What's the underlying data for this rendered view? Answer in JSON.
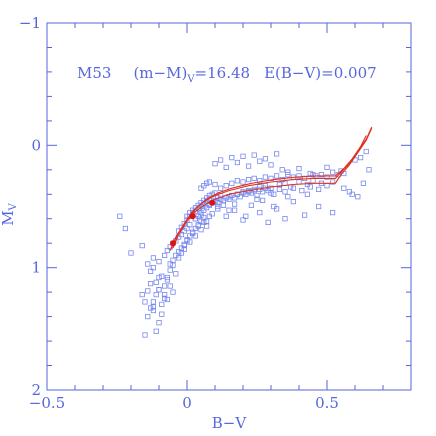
{
  "chart_data": {
    "type": "scatter",
    "title": "",
    "xlabel": "B−V",
    "ylabel": "M",
    "ylabel_subscript": "V",
    "xlim": [
      -0.5,
      0.8
    ],
    "ylim": [
      -1,
      2
    ],
    "y_inverted": true,
    "grid": false,
    "x_ticks": [
      -0.5,
      0,
      0.5
    ],
    "x_tick_labels": [
      "−0.5",
      "0",
      "0.5"
    ],
    "y_ticks": [
      -1,
      0,
      1,
      2
    ],
    "y_tick_labels": [
      "−1",
      "0",
      "1",
      "2"
    ],
    "annotation": {
      "cluster": "M53",
      "modulus_prefix": "(m−M)",
      "modulus_subscript": "V",
      "modulus_value": "=16.48",
      "reddening": "E(B−V)=0.007"
    },
    "colors": {
      "axis": "#5566dd",
      "points": "#7788ee",
      "tracks": "#dd3322",
      "markers": "#dd1111"
    },
    "tracks": [
      {
        "x": [
          -0.06,
          -0.04,
          -0.01,
          0.02,
          0.06,
          0.1,
          0.15,
          0.22,
          0.3,
          0.38,
          0.45,
          0.5,
          0.53,
          0.55,
          0.58,
          0.61,
          0.64,
          0.66
        ],
        "y": [
          0.86,
          0.75,
          0.64,
          0.54,
          0.46,
          0.41,
          0.37,
          0.33,
          0.3,
          0.28,
          0.27,
          0.27,
          0.27,
          0.22,
          0.15,
          0.05,
          -0.05,
          -0.15
        ]
      },
      {
        "x": [
          -0.06,
          -0.04,
          -0.01,
          0.02,
          0.06,
          0.1,
          0.15,
          0.22,
          0.3,
          0.38,
          0.45,
          0.5,
          0.53,
          0.55,
          0.58,
          0.61,
          0.64,
          0.66
        ],
        "y": [
          0.86,
          0.76,
          0.65,
          0.56,
          0.49,
          0.44,
          0.4,
          0.37,
          0.34,
          0.32,
          0.31,
          0.31,
          0.31,
          0.24,
          0.16,
          0.06,
          -0.04,
          -0.14
        ]
      },
      {
        "x": [
          -0.05,
          -0.03,
          0.0,
          0.03,
          0.07,
          0.11,
          0.16,
          0.23,
          0.31,
          0.39,
          0.46,
          0.51,
          0.53,
          0.56,
          0.59,
          0.62,
          0.64
        ],
        "y": [
          0.84,
          0.73,
          0.62,
          0.52,
          0.44,
          0.39,
          0.35,
          0.31,
          0.28,
          0.26,
          0.25,
          0.25,
          0.25,
          0.19,
          0.11,
          0.01,
          -0.08
        ]
      }
    ],
    "markers": {
      "x": [
        -0.05,
        0.02,
        0.09
      ],
      "y": [
        0.8,
        0.58,
        0.47
      ]
    },
    "points": {
      "x": [
        -0.24,
        -0.22,
        -0.2,
        -0.16,
        -0.14,
        -0.12,
        -0.13,
        -0.11,
        -0.1,
        -0.09,
        -0.08,
        -0.12,
        -0.1,
        -0.08,
        -0.07,
        -0.06,
        -0.05,
        -0.04,
        -0.03,
        -0.02,
        -0.01,
        0.0,
        -0.06,
        -0.05,
        -0.04,
        -0.03,
        -0.02,
        -0.01,
        0.0,
        0.01,
        0.02,
        0.03,
        0.04,
        0.05,
        0.06,
        -0.03,
        -0.02,
        -0.01,
        0.0,
        0.01,
        0.02,
        0.03,
        0.04,
        0.05,
        0.06,
        0.07,
        0.08,
        0.0,
        0.01,
        0.02,
        0.03,
        0.04,
        0.05,
        0.06,
        0.07,
        0.08,
        0.09,
        0.1,
        0.03,
        0.04,
        0.05,
        0.06,
        0.07,
        0.08,
        0.09,
        0.1,
        0.11,
        0.12,
        0.05,
        0.06,
        0.07,
        0.08,
        0.1,
        0.12,
        0.14,
        0.16,
        0.18,
        0.2,
        0.22,
        0.24,
        0.26,
        0.28,
        0.3,
        0.32,
        0.34,
        0.36,
        0.38,
        0.4,
        0.42,
        0.44,
        0.46,
        0.48,
        0.5,
        0.52,
        0.54,
        0.56,
        0.15,
        0.18,
        0.2,
        0.22,
        0.24,
        0.25,
        0.26,
        0.28,
        0.3,
        0.33,
        0.35,
        0.37,
        0.4,
        0.43,
        0.45,
        0.48,
        0.5,
        0.52,
        0.11,
        0.13,
        0.15,
        0.17,
        0.19,
        0.21,
        0.23,
        0.25,
        0.27,
        0.29,
        0.31,
        0.33,
        0.35,
        0.38,
        0.41,
        0.44,
        0.47,
        0.05,
        0.08,
        0.1,
        0.12,
        0.14,
        0.16,
        0.18,
        0.2,
        0.22,
        0.24,
        0.26,
        0.28,
        0.3,
        0.1,
        0.12,
        0.14,
        0.16,
        0.18,
        0.2,
        0.22,
        0.24,
        0.26,
        0.28,
        0.3,
        0.32,
        0.34,
        0.36,
        0.4,
        0.45,
        0.5,
        0.55,
        0.6,
        0.62,
        0.64,
        0.58,
        0.61,
        0.56,
        0.59,
        0.63,
        0.65,
        0.52,
        0.47,
        0.42,
        0.38,
        0.35,
        0.32,
        0.29,
        0.26,
        0.23,
        0.2,
        0.17,
        0.14,
        0.11,
        -0.07,
        -0.06,
        -0.05,
        -0.04,
        -0.08,
        -0.09,
        -0.1,
        -0.11,
        -0.12,
        -0.06,
        -0.05,
        -0.07,
        -0.03,
        -0.02,
        -0.01,
        -0.13,
        -0.15,
        -0.14,
        -0.12,
        -0.16,
        -0.1,
        -0.09,
        -0.08,
        -0.07,
        -0.11,
        -0.1,
        -0.12,
        -0.14,
        -0.13,
        -0.15,
        0.15,
        0.17,
        0.21,
        0.27,
        0.31,
        0.36,
        0.43,
        0.07,
        0.09,
        0.11,
        0.13,
        0.01,
        0.03,
        0.05,
        0.02,
        0.04,
        0.06,
        0.08,
        0.0,
        -0.01,
        0.01,
        0.03,
        0.05,
        0.07
      ],
      "y": [
        0.58,
        0.68,
        0.88,
        0.82,
        0.97,
        0.92,
        1.03,
        1.12,
        1.18,
        1.07,
        1.22,
        1.28,
        0.95,
        0.9,
        0.86,
        0.83,
        0.8,
        0.78,
        0.75,
        0.73,
        0.7,
        0.68,
        0.97,
        0.94,
        0.9,
        0.87,
        0.84,
        0.81,
        0.78,
        0.74,
        0.71,
        0.68,
        0.65,
        0.62,
        0.59,
        0.7,
        0.67,
        0.64,
        0.61,
        0.58,
        0.56,
        0.54,
        0.52,
        0.5,
        0.48,
        0.46,
        0.44,
        0.58,
        0.55,
        0.53,
        0.51,
        0.49,
        0.47,
        0.45,
        0.43,
        0.41,
        0.4,
        0.39,
        0.6,
        0.58,
        0.55,
        0.53,
        0.51,
        0.49,
        0.47,
        0.45,
        0.43,
        0.41,
        0.35,
        0.33,
        0.31,
        0.3,
        0.32,
        0.35,
        0.33,
        0.31,
        0.29,
        0.3,
        0.28,
        0.27,
        0.29,
        0.26,
        0.27,
        0.25,
        0.28,
        0.24,
        0.26,
        0.25,
        0.27,
        0.23,
        0.25,
        0.24,
        0.26,
        0.22,
        0.24,
        0.23,
        0.42,
        0.4,
        0.38,
        0.37,
        0.36,
        0.41,
        0.34,
        0.33,
        0.35,
        0.32,
        0.31,
        0.34,
        0.3,
        0.32,
        0.29,
        0.31,
        0.33,
        0.3,
        0.47,
        0.45,
        0.44,
        0.43,
        0.42,
        0.4,
        0.39,
        0.44,
        0.38,
        0.37,
        0.4,
        0.36,
        0.38,
        0.35,
        0.37,
        0.34,
        0.36,
        0.5,
        0.48,
        0.46,
        0.44,
        0.43,
        0.41,
        0.4,
        0.39,
        0.38,
        0.37,
        0.36,
        0.35,
        0.39,
        0.15,
        0.12,
        0.18,
        0.1,
        0.14,
        0.09,
        0.17,
        0.08,
        0.13,
        0.11,
        0.16,
        0.07,
        0.2,
        0.22,
        0.19,
        0.24,
        0.18,
        0.21,
        0.12,
        0.1,
        0.05,
        0.38,
        0.42,
        0.35,
        0.4,
        0.31,
        0.2,
        0.55,
        0.5,
        0.57,
        0.46,
        0.6,
        0.52,
        0.63,
        0.55,
        0.49,
        0.61,
        0.53,
        0.58,
        0.5,
        1.1,
        1.15,
        1.2,
        1.05,
        1.25,
        1.3,
        1.18,
        1.22,
        1.35,
        1.02,
        0.98,
        1.08,
        0.92,
        0.88,
        0.85,
        1.13,
        1.28,
        1.4,
        1.32,
        1.22,
        1.45,
        1.38,
        1.15,
        1.26,
        1.52,
        1.08,
        1.0,
        1.19,
        1.33,
        1.55,
        0.53,
        0.48,
        0.58,
        0.45,
        0.5,
        0.42,
        0.4,
        0.62,
        0.56,
        0.52,
        0.49,
        0.65,
        0.6,
        0.57,
        0.72,
        0.66,
        0.63,
        0.58,
        0.77,
        0.82,
        0.79,
        0.74,
        0.69,
        0.66
      ]
    }
  }
}
